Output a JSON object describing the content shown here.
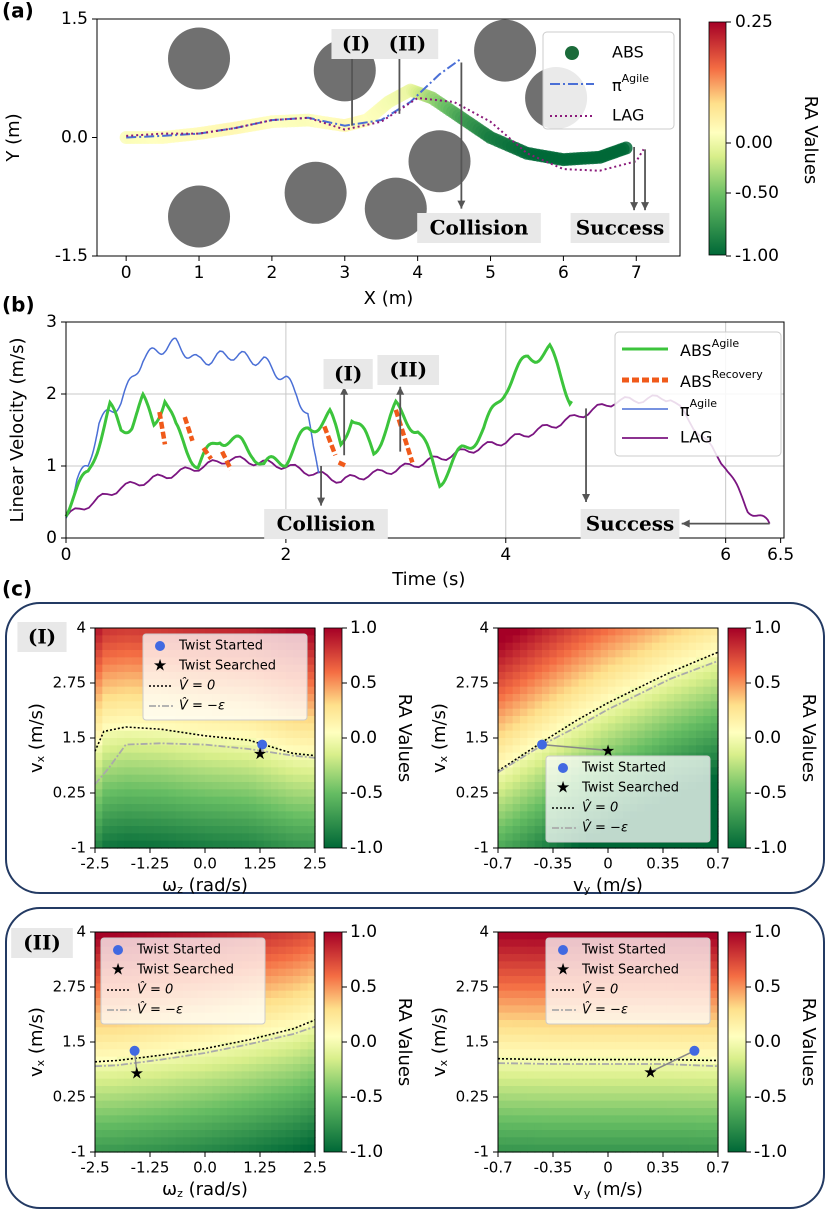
{
  "panel_labels": {
    "a": "(a)",
    "b": "(b)",
    "c": "(c)"
  },
  "annotations": {
    "event1": "(I)",
    "event2": "(II)",
    "collision": "Collision",
    "success": "Success"
  },
  "colorbar_label": "RA Values",
  "colors": {
    "obstacle": "#707070",
    "abs_start": "#dfe7a4",
    "abs_end": "#1b6b3a",
    "agile": "#4a6fd6",
    "lag_dot": "#8b1a7a",
    "abs_agile": "#3cc43c",
    "abs_recovery": "#f05a1a",
    "lag_line": "#7b1581",
    "twist_start": "#4169e1",
    "twist_search": "#20d8e8",
    "panel_border": "#233a63"
  },
  "chart_data": [
    {
      "id": "a",
      "type": "line",
      "title": "",
      "xlabel": "X (m)",
      "ylabel": "Y (m)",
      "xlim": [
        -0.4,
        7.6
      ],
      "ylim": [
        -1.5,
        1.5
      ],
      "xticks": [
        "0",
        "1",
        "2",
        "3",
        "4",
        "5",
        "6",
        "7"
      ],
      "yticks": [
        "1.5",
        "0.0",
        "-1.5"
      ],
      "colorbar": {
        "label": "RA Values",
        "ticks": [
          "0.25",
          "0.00",
          "-0.50",
          "-1.00"
        ],
        "range": [
          -1.0,
          0.25
        ]
      },
      "legend": [
        "ABS",
        "π^Agile",
        "LAG"
      ],
      "obstacles": [
        [
          1,
          1
        ],
        [
          3,
          0.85
        ],
        [
          5.2,
          1.1
        ],
        [
          5.9,
          0.5
        ],
        [
          4.3,
          -0.3
        ],
        [
          2.6,
          -0.7
        ],
        [
          3.7,
          -0.9
        ],
        [
          1,
          -1
        ]
      ],
      "series": [
        {
          "name": "ABS",
          "x": [
            0,
            0.5,
            1,
            1.5,
            2,
            2.5,
            3,
            3.3,
            3.6,
            3.9,
            4.2,
            4.6,
            5,
            5.5,
            6,
            6.5,
            6.9
          ],
          "y": [
            0,
            0,
            0.05,
            0.12,
            0.2,
            0.22,
            0.15,
            0.22,
            0.45,
            0.6,
            0.5,
            0.25,
            0,
            -0.2,
            -0.28,
            -0.25,
            -0.12
          ],
          "ra": [
            0.02,
            0.05,
            0.08,
            0.1,
            0.05,
            0.02,
            0.1,
            0.05,
            0.0,
            -0.05,
            -0.3,
            -0.6,
            -0.8,
            -0.9,
            -0.95,
            -1.0,
            -1.0
          ]
        },
        {
          "name": "π^Agile",
          "x": [
            0,
            0.5,
            1,
            1.5,
            2,
            2.5,
            3,
            3.5,
            3.9,
            4.3,
            4.6
          ],
          "y": [
            0,
            0.02,
            0.05,
            0.12,
            0.22,
            0.25,
            0.15,
            0.22,
            0.45,
            0.8,
            1.0
          ]
        },
        {
          "name": "LAG",
          "x": [
            0,
            0.5,
            1,
            1.5,
            2,
            2.5,
            3,
            3.5,
            4,
            4.5,
            5,
            5.5,
            6,
            6.5,
            7,
            7.1
          ],
          "y": [
            0.02,
            0.05,
            0.05,
            0.12,
            0.22,
            0.25,
            0.1,
            0.2,
            0.5,
            0.45,
            0.2,
            -0.2,
            -0.4,
            -0.42,
            -0.3,
            -0.15
          ]
        }
      ]
    },
    {
      "id": "b",
      "type": "line",
      "title": "",
      "xlabel": "Time (s)",
      "ylabel": "Linear Velocity (m/s)",
      "xlim": [
        0,
        6.5
      ],
      "ylim": [
        0,
        3
      ],
      "xticks": [
        "0",
        "2",
        "4",
        "6",
        "6.5"
      ],
      "yticks": [
        "0",
        "1",
        "2",
        "3"
      ],
      "legend": [
        "ABS^Agile",
        "ABS^Recovery",
        "π^Agile",
        "LAG"
      ],
      "series": [
        {
          "name": "ABS^Agile",
          "x": [
            0,
            0.2,
            0.4,
            0.5,
            0.6,
            0.7,
            0.8,
            0.9,
            1.0,
            1.2,
            1.4,
            1.6,
            1.7,
            1.8,
            2.0,
            2.2,
            2.4,
            2.5,
            2.6,
            2.8,
            3.0,
            3.2,
            3.4,
            3.6,
            3.8,
            4.0,
            4.2,
            4.4,
            4.6
          ],
          "y": [
            0.4,
            0.9,
            1.8,
            1.5,
            1.6,
            1.9,
            1.6,
            1.95,
            1.5,
            1.0,
            1.4,
            1.3,
            1.2,
            1.0,
            1.1,
            1.5,
            1.7,
            1.3,
            1.7,
            1.2,
            1.8,
            1.5,
            0.8,
            1.2,
            1.5,
            2.1,
            2.5,
            2.6,
            1.9
          ]
        },
        {
          "name": "ABS^Recovery",
          "segments": [
            [
              [
                0.85,
                1.75
              ],
              [
                0.9,
                1.3
              ]
            ],
            [
              [
                1.08,
                1.68
              ],
              [
                1.15,
                1.35
              ]
            ],
            [
              [
                1.25,
                1.25
              ],
              [
                1.32,
                1.1
              ]
            ],
            [
              [
                1.42,
                1.2
              ],
              [
                1.5,
                0.95
              ]
            ],
            [
              [
                2.35,
                1.55
              ],
              [
                2.45,
                1.15
              ]
            ],
            [
              [
                2.48,
                1.05
              ],
              [
                2.55,
                1.0
              ]
            ],
            [
              [
                3.0,
                1.78
              ],
              [
                3.15,
                1.05
              ]
            ]
          ]
        },
        {
          "name": "π^Agile",
          "x": [
            0,
            0.1,
            0.2,
            0.3,
            0.5,
            0.7,
            0.9,
            1.0,
            1.2,
            1.5,
            1.8,
            2.0,
            2.1,
            2.2,
            2.25,
            2.3
          ],
          "y": [
            0.3,
            0.8,
            1.0,
            1.6,
            1.9,
            2.5,
            2.65,
            2.7,
            2.45,
            2.55,
            2.45,
            2.2,
            2.0,
            1.7,
            1.2,
            0.9
          ]
        },
        {
          "name": "LAG",
          "x": [
            0,
            0.5,
            1.0,
            1.5,
            2.0,
            2.5,
            3.0,
            3.5,
            4.0,
            4.5,
            5.0,
            5.5,
            6.0,
            6.2,
            6.4
          ],
          "y": [
            0.3,
            0.7,
            0.9,
            1.1,
            1.0,
            0.8,
            0.95,
            1.15,
            1.35,
            1.6,
            1.9,
            1.95,
            1.0,
            0.4,
            0.2
          ]
        }
      ]
    },
    {
      "id": "c-I-wz",
      "type": "heatmap",
      "event": "(I)",
      "xlabel": "ωz (rad/s)",
      "ylabel": "vx (m/s)",
      "xlim": [
        -2.5,
        2.5
      ],
      "ylim": [
        -1,
        4
      ],
      "xticks": [
        "-2.5",
        "-1.25",
        "0.0",
        "1.25",
        "2.5"
      ],
      "yticks": [
        "4",
        "2.75",
        "1.5",
        "0.25",
        "-1"
      ],
      "colorbar": {
        "label": "RA Values",
        "ticks": [
          "1.0",
          "0.5",
          "0.0",
          "-0.5",
          "-1.0"
        ],
        "range": [
          -1.0,
          1.0
        ]
      },
      "legend": [
        "Twist Started",
        "Twist Searched",
        "V̂ = 0",
        "V̂ = −ε"
      ],
      "legend_loc": "top-right",
      "twist_started": [
        1.3,
        1.35
      ],
      "twist_searched": [
        1.25,
        1.15
      ],
      "v0_curve": {
        "x": [
          -2.5,
          -2.3,
          -1.8,
          -1.0,
          0.0,
          1.0,
          2.0,
          2.5
        ],
        "y": [
          1.2,
          1.65,
          1.75,
          1.7,
          1.55,
          1.45,
          1.15,
          1.1
        ]
      },
      "veps_curve": {
        "x": [
          -2.5,
          -2.2,
          -1.8,
          -1.0,
          0.0,
          1.0,
          2.0,
          2.5
        ],
        "y": [
          0.45,
          0.8,
          1.35,
          1.38,
          1.35,
          1.25,
          1.1,
          1.05
        ]
      }
    },
    {
      "id": "c-I-vy",
      "type": "heatmap",
      "event": "(I)",
      "xlabel": "vy (m/s)",
      "ylabel": "vx (m/s)",
      "xlim": [
        -0.7,
        0.7
      ],
      "ylim": [
        -1,
        4
      ],
      "xticks": [
        "-0.7",
        "-0.35",
        "0",
        "0.35",
        "0.7"
      ],
      "yticks": [
        "4",
        "2.75",
        "1.5",
        "0.25",
        "-1"
      ],
      "colorbar": {
        "label": "RA Values",
        "ticks": [
          "1.0",
          "0.5",
          "0.0",
          "-0.5",
          "-1.0"
        ],
        "range": [
          -1.0,
          1.0
        ]
      },
      "legend": [
        "Twist Started",
        "Twist Searched",
        "V̂ = 0",
        "V̂ = −ε"
      ],
      "legend_loc": "bottom-right",
      "twist_started": [
        -0.42,
        1.35
      ],
      "twist_searched": [
        0.0,
        1.22
      ],
      "v0_curve": {
        "x": [
          -0.7,
          -0.55,
          -0.4,
          -0.2,
          0.0,
          0.2,
          0.4,
          0.7
        ],
        "y": [
          0.75,
          1.1,
          1.45,
          1.9,
          2.3,
          2.65,
          3.0,
          3.45
        ]
      },
      "veps_curve": {
        "x": [
          -0.7,
          -0.55,
          -0.4,
          -0.2,
          0.0,
          0.2,
          0.4,
          0.7
        ],
        "y": [
          0.72,
          1.05,
          1.38,
          1.75,
          2.15,
          2.5,
          2.85,
          3.25
        ]
      }
    },
    {
      "id": "c-II-wz",
      "type": "heatmap",
      "event": "(II)",
      "xlabel": "ωz (rad/s)",
      "ylabel": "vx (m/s)",
      "xlim": [
        -2.5,
        2.5
      ],
      "ylim": [
        -1,
        4
      ],
      "xticks": [
        "-2.5",
        "-1.25",
        "0.0",
        "1.25",
        "2.5"
      ],
      "yticks": [
        "4",
        "2.75",
        "1.5",
        "0.25",
        "-1"
      ],
      "colorbar": {
        "label": "RA Values",
        "ticks": [
          "1.0",
          "0.5",
          "0.0",
          "-0.5",
          "-1.0"
        ],
        "range": [
          -1.0,
          1.0
        ]
      },
      "legend": [
        "Twist Started",
        "Twist Searched",
        "V̂ = 0",
        "V̂ = −ε"
      ],
      "legend_loc": "top-left",
      "twist_started": [
        -1.6,
        1.3
      ],
      "twist_searched": [
        -1.55,
        0.8
      ],
      "v0_curve": {
        "x": [
          -2.5,
          -2.0,
          -1.0,
          0.0,
          1.0,
          2.0,
          2.5
        ],
        "y": [
          1.05,
          1.08,
          1.2,
          1.35,
          1.55,
          1.8,
          2.0
        ]
      },
      "veps_curve": {
        "x": [
          -2.5,
          -2.0,
          -1.0,
          0.0,
          1.0,
          2.0,
          2.5
        ],
        "y": [
          0.95,
          0.97,
          1.1,
          1.25,
          1.45,
          1.68,
          1.85
        ]
      }
    },
    {
      "id": "c-II-vy",
      "type": "heatmap",
      "event": "(II)",
      "xlabel": "vy (m/s)",
      "ylabel": "vx (m/s)",
      "xlim": [
        -0.7,
        0.7
      ],
      "ylim": [
        -1,
        4
      ],
      "xticks": [
        "-0.7",
        "-0.35",
        "0",
        "0.35",
        "0.7"
      ],
      "yticks": [
        "4",
        "2.75",
        "1.5",
        "0.25",
        "-1"
      ],
      "colorbar": {
        "label": "RA Values",
        "ticks": [
          "1.0",
          "0.5",
          "0.0",
          "-0.5",
          "-1.0"
        ],
        "range": [
          -1.0,
          1.0
        ]
      },
      "legend": [
        "Twist Started",
        "Twist Searched",
        "V̂ = 0",
        "V̂ = −ε"
      ],
      "legend_loc": "top-right",
      "twist_started": [
        0.55,
        1.3
      ],
      "twist_searched": [
        0.27,
        0.82
      ],
      "v0_curve": {
        "x": [
          -0.7,
          -0.35,
          0.0,
          0.35,
          0.7
        ],
        "y": [
          1.12,
          1.1,
          1.1,
          1.1,
          1.08
        ]
      },
      "veps_curve": {
        "x": [
          -0.7,
          -0.35,
          0.0,
          0.35,
          0.7
        ],
        "y": [
          1.02,
          1.0,
          1.0,
          1.0,
          0.95
        ]
      }
    }
  ]
}
